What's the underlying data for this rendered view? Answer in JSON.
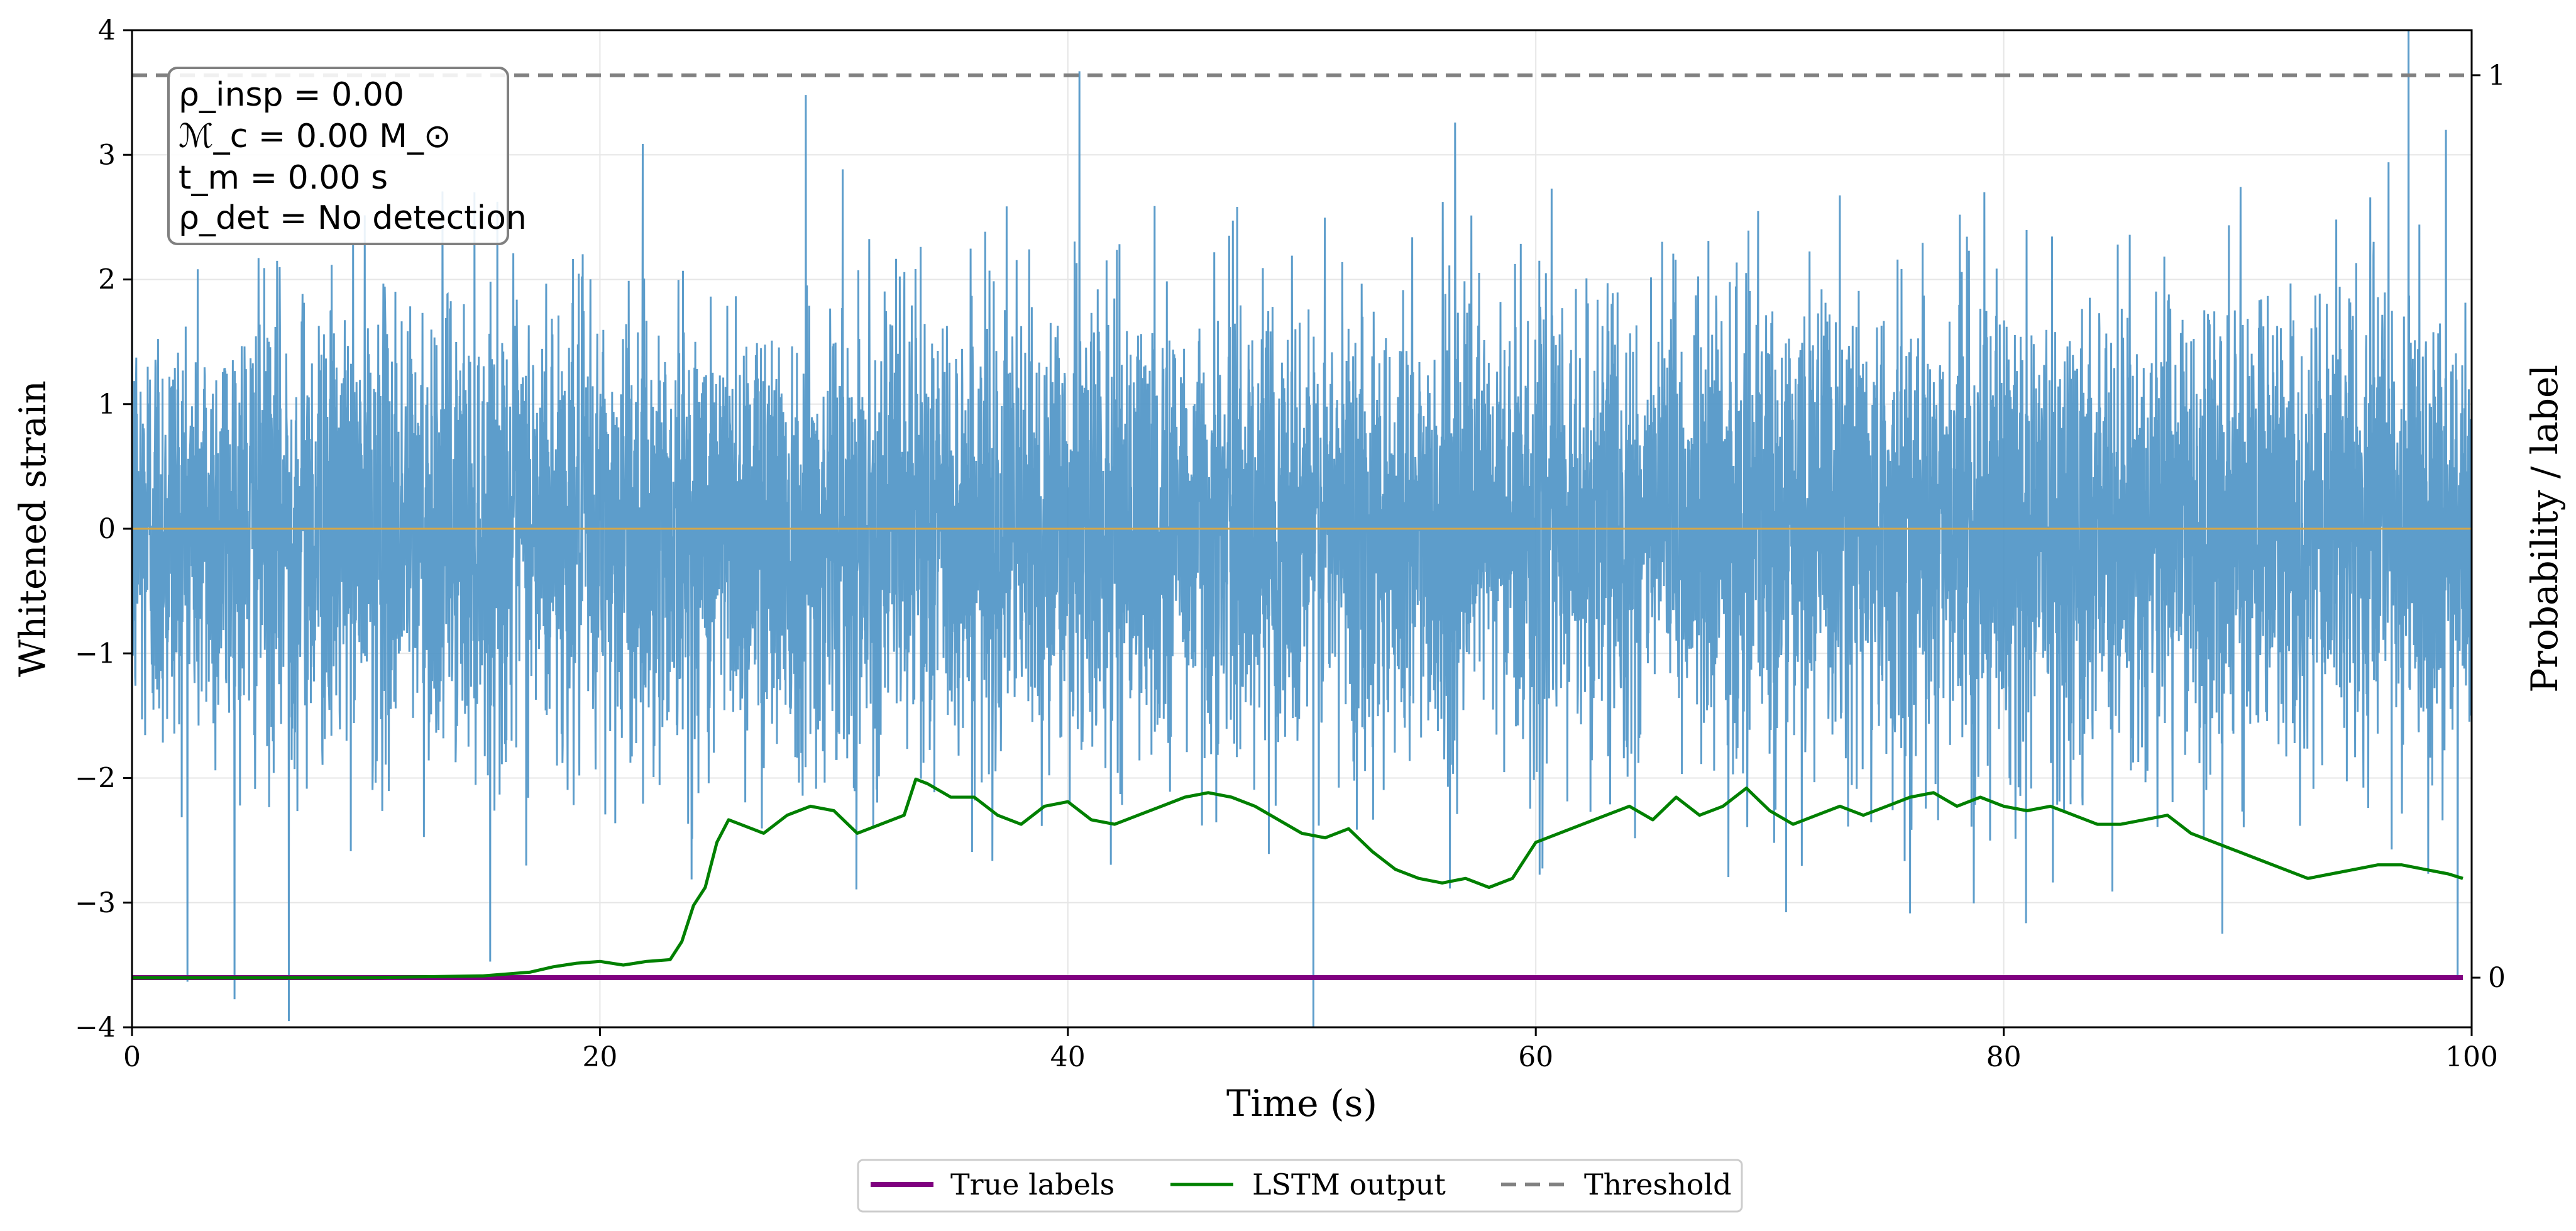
{
  "chart_data": {
    "type": "line",
    "title": "",
    "xlabel": "Time (s)",
    "ylabel": "Whitened strain",
    "y2label": "Probability / label",
    "xlim": [
      0,
      100
    ],
    "ylim": [
      -4,
      4
    ],
    "y2lim": [
      -0.055,
      1.05
    ],
    "x_ticks": [
      0,
      20,
      40,
      60,
      80,
      100
    ],
    "x_tick_labels": [
      "0",
      "20",
      "40",
      "60",
      "80",
      "100"
    ],
    "y_ticks": [
      -4,
      -3,
      -2,
      -1,
      0,
      1,
      2,
      3,
      4
    ],
    "y_tick_labels": [
      "−4",
      "−3",
      "−2",
      "−1",
      "0",
      "1",
      "2",
      "3",
      "4"
    ],
    "y2_ticks": [
      0,
      1
    ],
    "y2_tick_labels": [
      "0",
      "1"
    ],
    "grid": true,
    "legend_position": "bottom-center-outside",
    "colors": {
      "strain": "#4f95c7",
      "true_labels": "#800080",
      "lstm": "#008000",
      "threshold": "#808080",
      "zero_line": "#d4a84b"
    },
    "annotation_lines": [
      "ρ_insp = 0.00",
      "ℳ_c = 0.00 M_⊙",
      "t_m = 0.00 s",
      "ρ_det = No detection"
    ],
    "series": [
      {
        "name": "Whitened strain",
        "axis": "left",
        "style": "noise",
        "n_samples": 8192,
        "mean": 0.0,
        "std": 0.9,
        "spikes": [
          {
            "x": 6.7,
            "y": -3.95
          },
          {
            "x": 28.8,
            "y": 3.48
          },
          {
            "x": 40.5,
            "y": 3.67
          },
          {
            "x": 50.5,
            "y": -4.0
          },
          {
            "x": 97.3,
            "y": 4.0
          },
          {
            "x": 98.9,
            "y": 3.2
          },
          {
            "x": 99.4,
            "y": -3.6
          }
        ]
      },
      {
        "name": "True labels",
        "axis": "right",
        "style": "solid",
        "x": [
          0,
          100
        ],
        "y": [
          0,
          0
        ]
      },
      {
        "name": "LSTM output",
        "axis": "right",
        "style": "solid",
        "x": [
          0,
          10,
          15,
          17,
          18,
          19,
          20,
          21,
          22,
          23,
          23.5,
          24,
          24.5,
          25,
          25.5,
          26,
          27,
          28,
          29,
          30,
          31,
          32,
          33,
          33.5,
          34,
          35,
          36,
          37,
          38,
          39,
          40,
          41,
          42,
          43,
          44,
          45,
          46,
          47,
          48,
          49,
          50,
          51,
          52,
          53,
          54,
          55,
          56,
          57,
          58,
          59,
          60,
          61,
          62,
          63,
          64,
          65,
          66,
          67,
          68,
          69,
          70,
          71,
          72,
          73,
          74,
          75,
          76,
          77,
          78,
          79,
          80,
          81,
          82,
          83,
          84,
          85,
          86,
          87,
          88,
          89,
          90,
          91,
          92,
          93,
          94,
          95,
          96,
          97,
          98,
          99,
          100
        ],
        "y": [
          0.0,
          0.0,
          0.002,
          0.006,
          0.012,
          0.016,
          0.018,
          0.014,
          0.018,
          0.02,
          0.04,
          0.08,
          0.1,
          0.15,
          0.175,
          0.17,
          0.16,
          0.18,
          0.19,
          0.185,
          0.16,
          0.17,
          0.18,
          0.22,
          0.215,
          0.2,
          0.2,
          0.18,
          0.17,
          0.19,
          0.195,
          0.175,
          0.17,
          0.18,
          0.19,
          0.2,
          0.205,
          0.2,
          0.19,
          0.175,
          0.16,
          0.155,
          0.165,
          0.14,
          0.12,
          0.11,
          0.105,
          0.11,
          0.1,
          0.11,
          0.15,
          0.16,
          0.17,
          0.18,
          0.19,
          0.175,
          0.2,
          0.18,
          0.19,
          0.21,
          0.185,
          0.17,
          0.18,
          0.19,
          0.18,
          0.19,
          0.2,
          0.205,
          0.19,
          0.2,
          0.19,
          0.185,
          0.19,
          0.18,
          0.17,
          0.17,
          0.175,
          0.18,
          0.16,
          0.15,
          0.14,
          0.13,
          0.12,
          0.11,
          0.115,
          0.12,
          0.125,
          0.125,
          0.12,
          0.115,
          0.11
        ]
      },
      {
        "name": "Threshold",
        "axis": "right",
        "style": "dashed",
        "x": [
          0,
          100
        ],
        "y": [
          1,
          1
        ]
      }
    ],
    "legend": [
      "True labels",
      "LSTM output",
      "Threshold"
    ]
  }
}
